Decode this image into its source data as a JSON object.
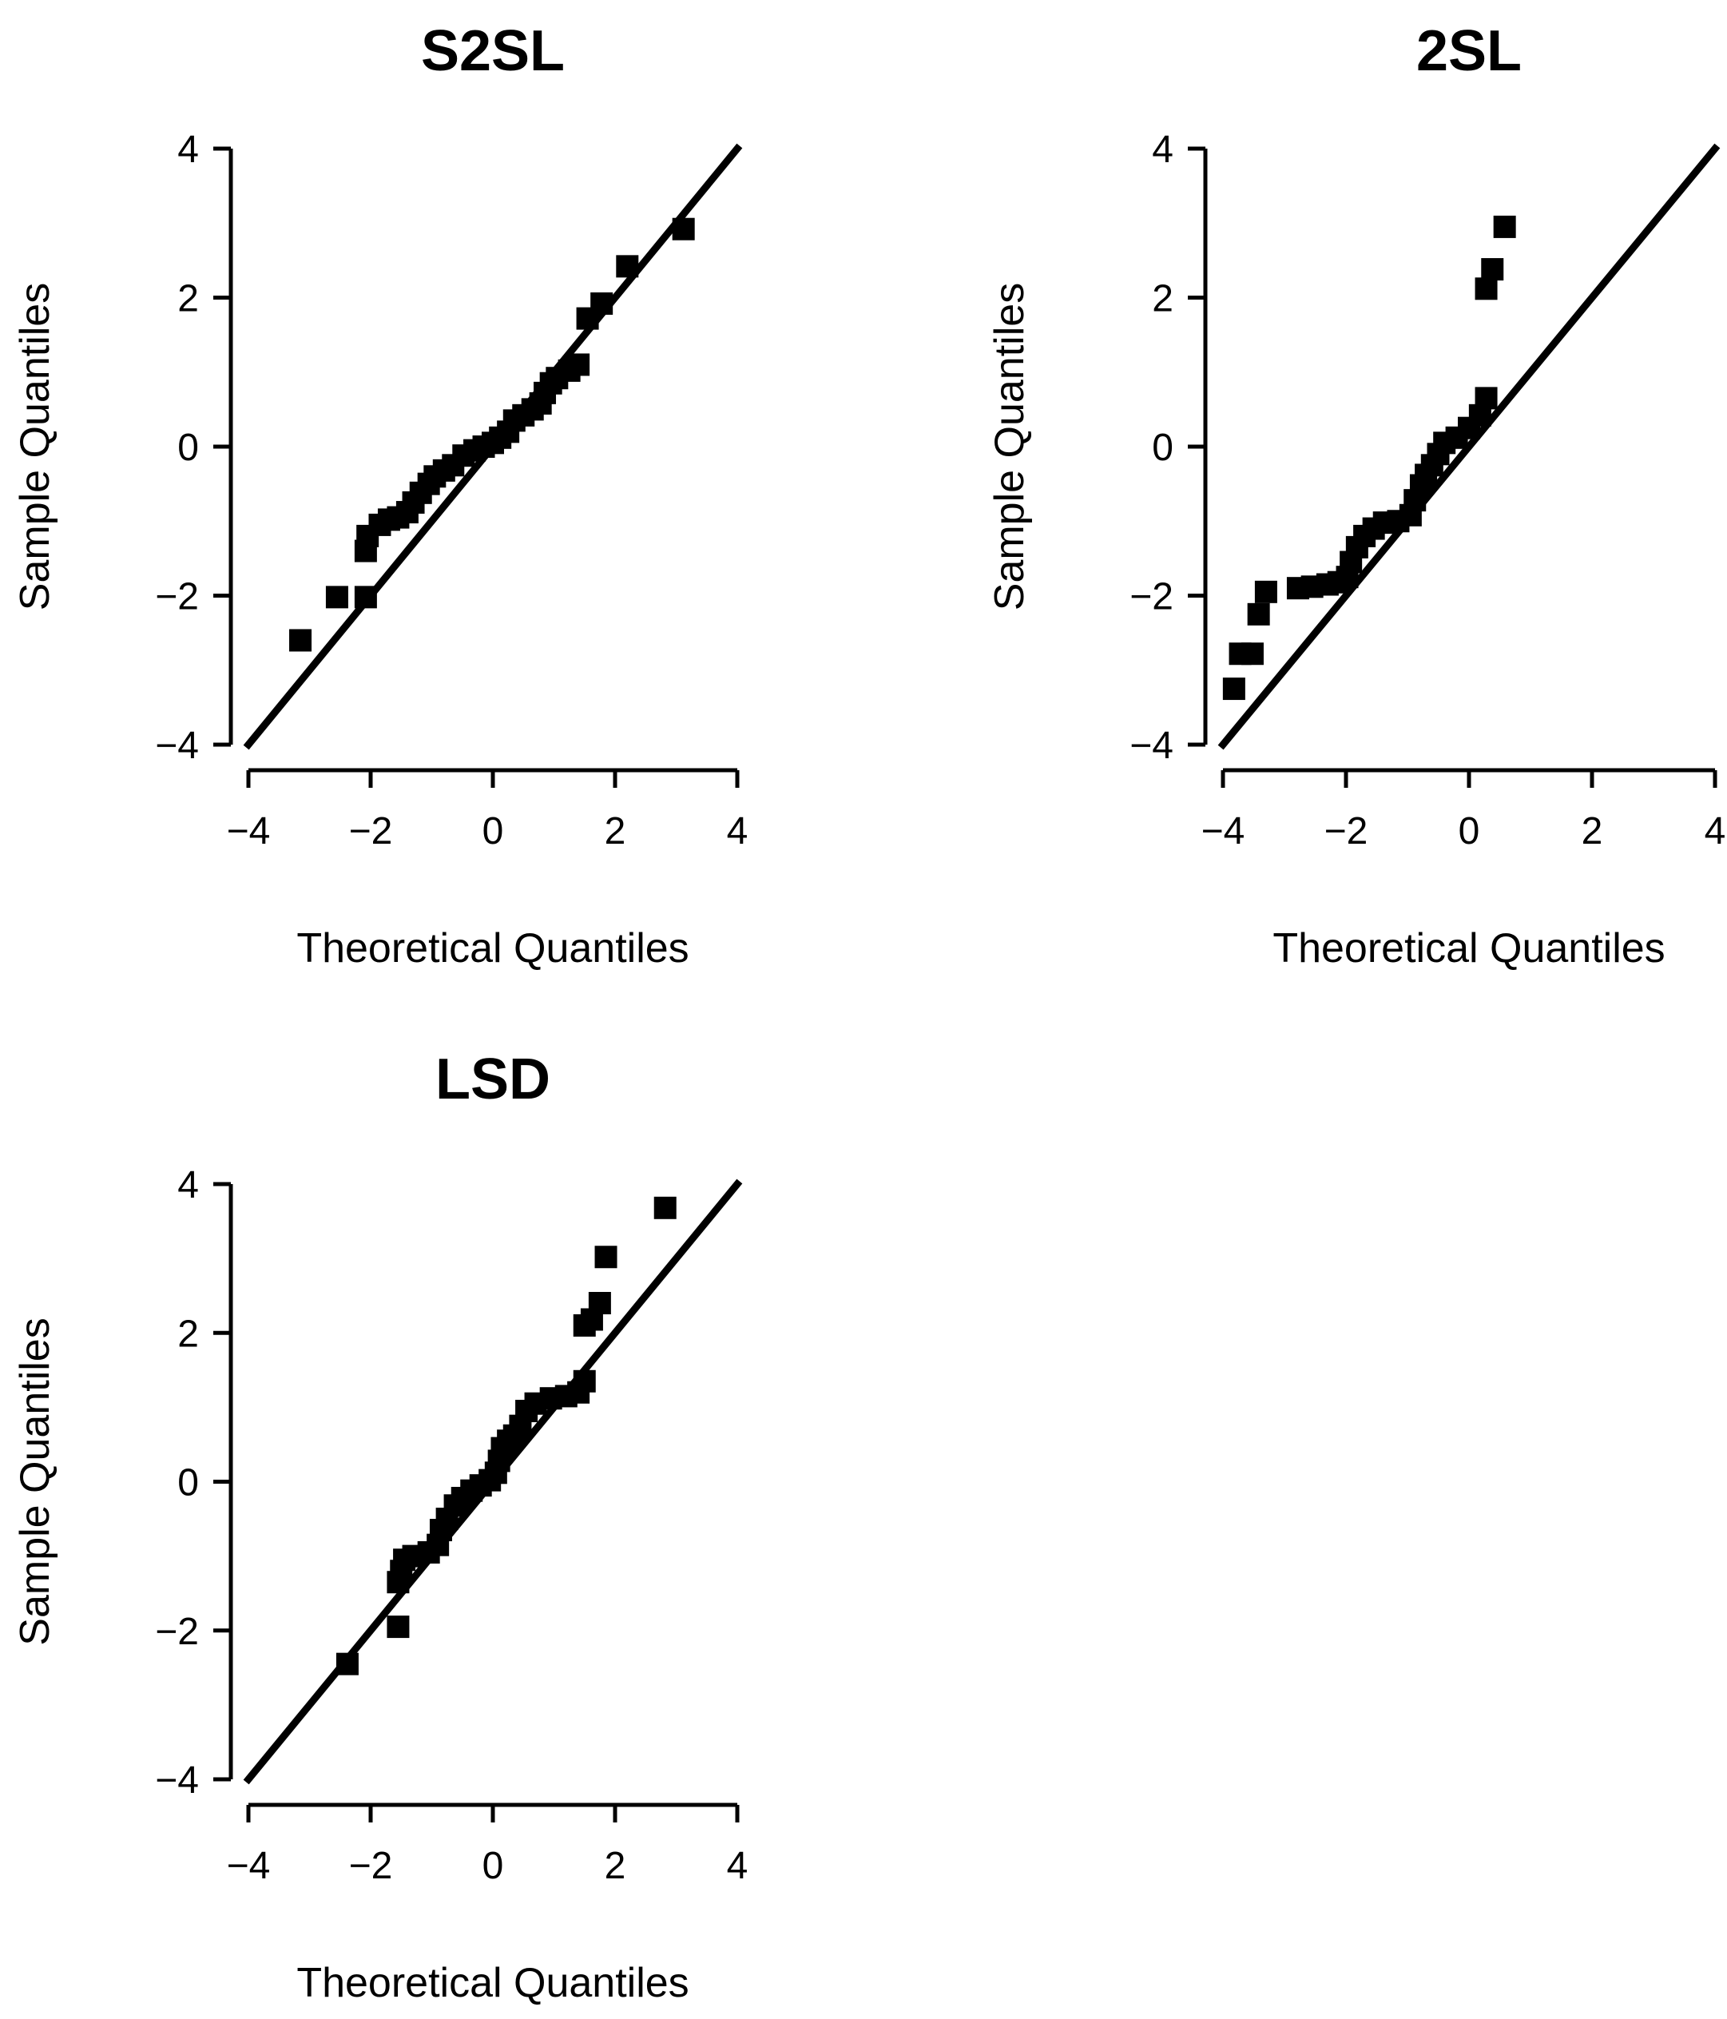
{
  "colors": {
    "background": "#ffffff",
    "ink": "#000000"
  },
  "chart_data": [
    {
      "type": "scatter",
      "title": "S2SL",
      "xlabel": "Theoretical Quantiles",
      "ylabel": "Sample Quantiles",
      "xlim": [
        -4,
        4
      ],
      "ylim": [
        -4,
        4
      ],
      "xticks": [
        -4,
        -2,
        0,
        2,
        4
      ],
      "yticks": [
        -4,
        -2,
        0,
        2,
        4
      ],
      "xtick_labels": [
        "−4",
        "−2",
        "0",
        "2",
        "4"
      ],
      "ytick_labels": [
        "−4",
        "−2",
        "0",
        "2",
        "4"
      ],
      "reference_line": {
        "slope": 1,
        "intercept": 0
      },
      "marker": "square",
      "points": [
        [
          -3.15,
          -2.6
        ],
        [
          -2.55,
          -2.02
        ],
        [
          -2.08,
          -2.02
        ],
        [
          -2.08,
          -1.4
        ],
        [
          -2.05,
          -1.2
        ],
        [
          -1.85,
          -1.05
        ],
        [
          -1.7,
          -0.98
        ],
        [
          -1.55,
          -0.95
        ],
        [
          -1.4,
          -0.88
        ],
        [
          -1.3,
          -0.75
        ],
        [
          -1.18,
          -0.62
        ],
        [
          -1.05,
          -0.5
        ],
        [
          -0.95,
          -0.4
        ],
        [
          -0.8,
          -0.32
        ],
        [
          -0.65,
          -0.25
        ],
        [
          -0.48,
          -0.12
        ],
        [
          -0.3,
          -0.05
        ],
        [
          -0.15,
          0.0
        ],
        [
          0.0,
          0.05
        ],
        [
          0.12,
          0.12
        ],
        [
          0.25,
          0.2
        ],
        [
          0.35,
          0.35
        ],
        [
          0.5,
          0.42
        ],
        [
          0.65,
          0.5
        ],
        [
          0.78,
          0.58
        ],
        [
          0.85,
          0.72
        ],
        [
          0.95,
          0.85
        ],
        [
          1.05,
          0.92
        ],
        [
          1.25,
          1.02
        ],
        [
          1.4,
          1.1
        ],
        [
          1.55,
          1.72
        ],
        [
          1.78,
          1.92
        ],
        [
          2.2,
          2.42
        ],
        [
          3.12,
          2.92
        ]
      ]
    },
    {
      "type": "scatter",
      "title": "2SL",
      "xlabel": "Theoretical Quantiles",
      "ylabel": "Sample Quantiles",
      "xlim": [
        -4,
        4
      ],
      "ylim": [
        -4,
        4
      ],
      "xticks": [
        -4,
        -2,
        0,
        2,
        4
      ],
      "yticks": [
        -4,
        -2,
        0,
        2,
        4
      ],
      "xtick_labels": [
        "−4",
        "−2",
        "0",
        "2",
        "4"
      ],
      "ytick_labels": [
        "−4",
        "−2",
        "0",
        "2",
        "4"
      ],
      "reference_line": {
        "slope": 1,
        "intercept": 0
      },
      "marker": "square",
      "points": [
        [
          -3.82,
          -3.25
        ],
        [
          -3.72,
          -2.78
        ],
        [
          -3.52,
          -2.78
        ],
        [
          -3.42,
          -2.25
        ],
        [
          -3.3,
          -1.95
        ],
        [
          -2.78,
          -1.9
        ],
        [
          -2.55,
          -1.88
        ],
        [
          -2.3,
          -1.85
        ],
        [
          -2.12,
          -1.82
        ],
        [
          -1.98,
          -1.75
        ],
        [
          -1.92,
          -1.55
        ],
        [
          -1.82,
          -1.35
        ],
        [
          -1.7,
          -1.2
        ],
        [
          -1.55,
          -1.1
        ],
        [
          -1.38,
          -1.02
        ],
        [
          -1.15,
          -1.0
        ],
        [
          -0.95,
          -0.92
        ],
        [
          -0.88,
          -0.72
        ],
        [
          -0.78,
          -0.52
        ],
        [
          -0.7,
          -0.38
        ],
        [
          -0.6,
          -0.25
        ],
        [
          -0.5,
          -0.1
        ],
        [
          -0.4,
          0.05
        ],
        [
          -0.2,
          0.12
        ],
        [
          0.0,
          0.25
        ],
        [
          0.18,
          0.42
        ],
        [
          0.28,
          0.65
        ],
        [
          0.28,
          2.12
        ],
        [
          0.38,
          2.38
        ],
        [
          0.58,
          2.95
        ]
      ]
    },
    {
      "type": "scatter",
      "title": "LSD",
      "xlabel": "Theoretical Quantiles",
      "ylabel": "Sample Quantiles",
      "xlim": [
        -4,
        4
      ],
      "ylim": [
        -4,
        4
      ],
      "xticks": [
        -4,
        -2,
        0,
        2,
        4
      ],
      "yticks": [
        -4,
        -2,
        0,
        2,
        4
      ],
      "xtick_labels": [
        "−4",
        "−2",
        "0",
        "2",
        "4"
      ],
      "ytick_labels": [
        "−4",
        "−2",
        "0",
        "2",
        "4"
      ],
      "reference_line": {
        "slope": 1,
        "intercept": 0
      },
      "marker": "square",
      "points": [
        [
          -2.38,
          -2.45
        ],
        [
          -1.55,
          -1.95
        ],
        [
          -1.55,
          -1.35
        ],
        [
          -1.5,
          -1.2
        ],
        [
          -1.45,
          -1.05
        ],
        [
          -1.3,
          -1.0
        ],
        [
          -1.05,
          -0.95
        ],
        [
          -0.9,
          -0.85
        ],
        [
          -0.85,
          -0.65
        ],
        [
          -0.75,
          -0.5
        ],
        [
          -0.62,
          -0.32
        ],
        [
          -0.5,
          -0.22
        ],
        [
          -0.35,
          -0.12
        ],
        [
          -0.2,
          -0.05
        ],
        [
          -0.05,
          0.02
        ],
        [
          0.05,
          0.12
        ],
        [
          0.1,
          0.28
        ],
        [
          0.15,
          0.45
        ],
        [
          0.25,
          0.55
        ],
        [
          0.35,
          0.62
        ],
        [
          0.45,
          0.75
        ],
        [
          0.55,
          0.95
        ],
        [
          0.7,
          1.05
        ],
        [
          0.95,
          1.12
        ],
        [
          1.2,
          1.15
        ],
        [
          1.4,
          1.2
        ],
        [
          1.5,
          1.35
        ],
        [
          1.5,
          2.1
        ],
        [
          1.62,
          2.18
        ],
        [
          1.75,
          2.4
        ],
        [
          1.85,
          3.02
        ],
        [
          2.82,
          3.68
        ]
      ]
    }
  ]
}
